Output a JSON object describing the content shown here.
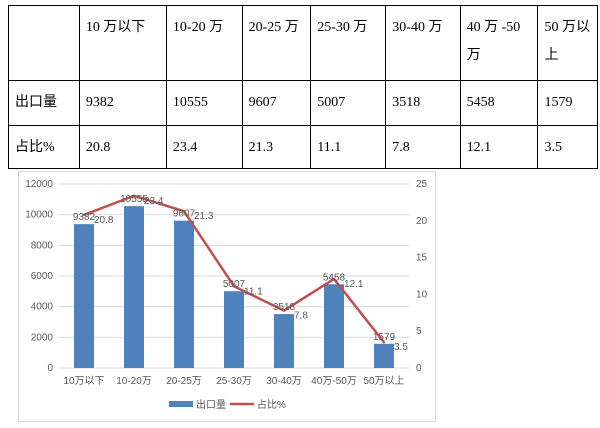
{
  "table": {
    "header": [
      "",
      "10 万以下",
      "10-20 万",
      "20-25 万",
      "25-30 万",
      "30-40 万",
      "40 万 -50 万",
      "50 万以上"
    ],
    "rows": [
      [
        "出口量",
        "9382",
        "10555",
        "9607",
        "5007",
        "3518",
        "5458",
        "1579"
      ],
      [
        "占比%",
        "20.8",
        "23.4",
        "21.3",
        "11.1",
        "7.8",
        "12.1",
        "3.5"
      ]
    ]
  },
  "chart_data": {
    "type": "bar",
    "categories": [
      "10万以下",
      "10-20万",
      "20-25万",
      "25-30万",
      "30-40万",
      "40万-50万",
      "50万以上"
    ],
    "series": [
      {
        "name": "出口量",
        "type": "bar",
        "axis": "left",
        "values": [
          9382,
          10555,
          9607,
          5007,
          3518,
          5458,
          1579
        ],
        "color": "#4f81bd"
      },
      {
        "name": "占比%",
        "type": "line",
        "axis": "right",
        "values": [
          20.8,
          23.4,
          21.3,
          11.1,
          7.8,
          12.1,
          3.5
        ],
        "color": "#c0504d"
      }
    ],
    "ylim_left": [
      0,
      12000
    ],
    "yticks_left": [
      "0",
      "2000",
      "4000",
      "6000",
      "8000",
      "10000",
      "12000"
    ],
    "ylim_right": [
      0,
      25
    ],
    "yticks_right": [
      "0",
      "5",
      "10",
      "15",
      "20",
      "25"
    ],
    "grid": true,
    "legend": "bottom"
  }
}
